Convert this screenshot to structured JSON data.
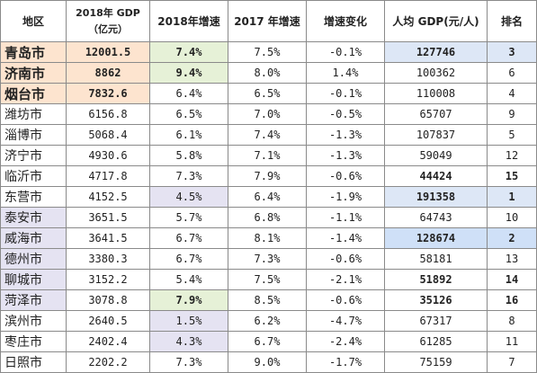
{
  "table": {
    "headers": {
      "region": "地区",
      "gdp_line1": "2018年 GDP",
      "gdp_line2": "（亿元）",
      "growth_2018": "2018年增速",
      "growth_2017": "2017 年增速",
      "growth_change": "增速变化",
      "per_capita": "人均 GDP(元/人)",
      "rank": "排名"
    },
    "rows": [
      {
        "city": "青岛市",
        "gdp": "12001.5",
        "g2018": "7.4%",
        "g2017": "7.5%",
        "change": "-0.1%",
        "per_capita": "127746",
        "rank": "3"
      },
      {
        "city": "济南市",
        "gdp": "8862",
        "g2018": "9.4%",
        "g2017": "8.0%",
        "change": "1.4%",
        "per_capita": "100362",
        "rank": "6"
      },
      {
        "city": "烟台市",
        "gdp": "7832.6",
        "g2018": "6.4%",
        "g2017": "6.5%",
        "change": "-0.1%",
        "per_capita": "110008",
        "rank": "4"
      },
      {
        "city": "潍坊市",
        "gdp": "6156.8",
        "g2018": "6.5%",
        "g2017": "7.0%",
        "change": "-0.5%",
        "per_capita": "65707",
        "rank": "9"
      },
      {
        "city": "淄博市",
        "gdp": "5068.4",
        "g2018": "6.1%",
        "g2017": "7.4%",
        "change": "-1.3%",
        "per_capita": "107837",
        "rank": "5"
      },
      {
        "city": "济宁市",
        "gdp": "4930.6",
        "g2018": "5.8%",
        "g2017": "7.1%",
        "change": "-1.3%",
        "per_capita": "59049",
        "rank": "12"
      },
      {
        "city": "临沂市",
        "gdp": "4717.8",
        "g2018": "7.3%",
        "g2017": "7.9%",
        "change": "-0.6%",
        "per_capita": "44424",
        "rank": "15"
      },
      {
        "city": "东营市",
        "gdp": "4152.5",
        "g2018": "4.5%",
        "g2017": "6.4%",
        "change": "-1.9%",
        "per_capita": "191358",
        "rank": "1"
      },
      {
        "city": "泰安市",
        "gdp": "3651.5",
        "g2018": "5.7%",
        "g2017": "6.8%",
        "change": "-1.1%",
        "per_capita": "64743",
        "rank": "10"
      },
      {
        "city": "威海市",
        "gdp": "3641.5",
        "g2018": "6.7%",
        "g2017": "8.1%",
        "change": "-1.4%",
        "per_capita": "128674",
        "rank": "2"
      },
      {
        "city": "德州市",
        "gdp": "3380.3",
        "g2018": "6.7%",
        "g2017": "7.3%",
        "change": "-0.6%",
        "per_capita": "58181",
        "rank": "13"
      },
      {
        "city": "聊城市",
        "gdp": "3152.2",
        "g2018": "5.4%",
        "g2017": "7.5%",
        "change": "-2.1%",
        "per_capita": "51892",
        "rank": "14"
      },
      {
        "city": "菏泽市",
        "gdp": "3078.8",
        "g2018": "7.9%",
        "g2017": "8.5%",
        "change": "-0.6%",
        "per_capita": "35126",
        "rank": "16"
      },
      {
        "city": "滨州市",
        "gdp": "2640.5",
        "g2018": "1.5%",
        "g2017": "6.2%",
        "change": "-4.7%",
        "per_capita": "67317",
        "rank": "8"
      },
      {
        "city": "枣庄市",
        "gdp": "2402.4",
        "g2018": "4.3%",
        "g2017": "6.7%",
        "change": "-2.4%",
        "per_capita": "61285",
        "rank": "11"
      },
      {
        "city": "日照市",
        "gdp": "2202.2",
        "g2018": "7.3%",
        "g2017": "9.0%",
        "change": "-1.7%",
        "per_capita": "75159",
        "rank": "7"
      }
    ]
  },
  "colors": {
    "orange_highlight": "#fde4cf",
    "green_highlight": "#e6f1d7",
    "purple_highlight": "#e5e3f2",
    "blue_highlight": "#dde7f6",
    "border": "#8a8a8a"
  }
}
